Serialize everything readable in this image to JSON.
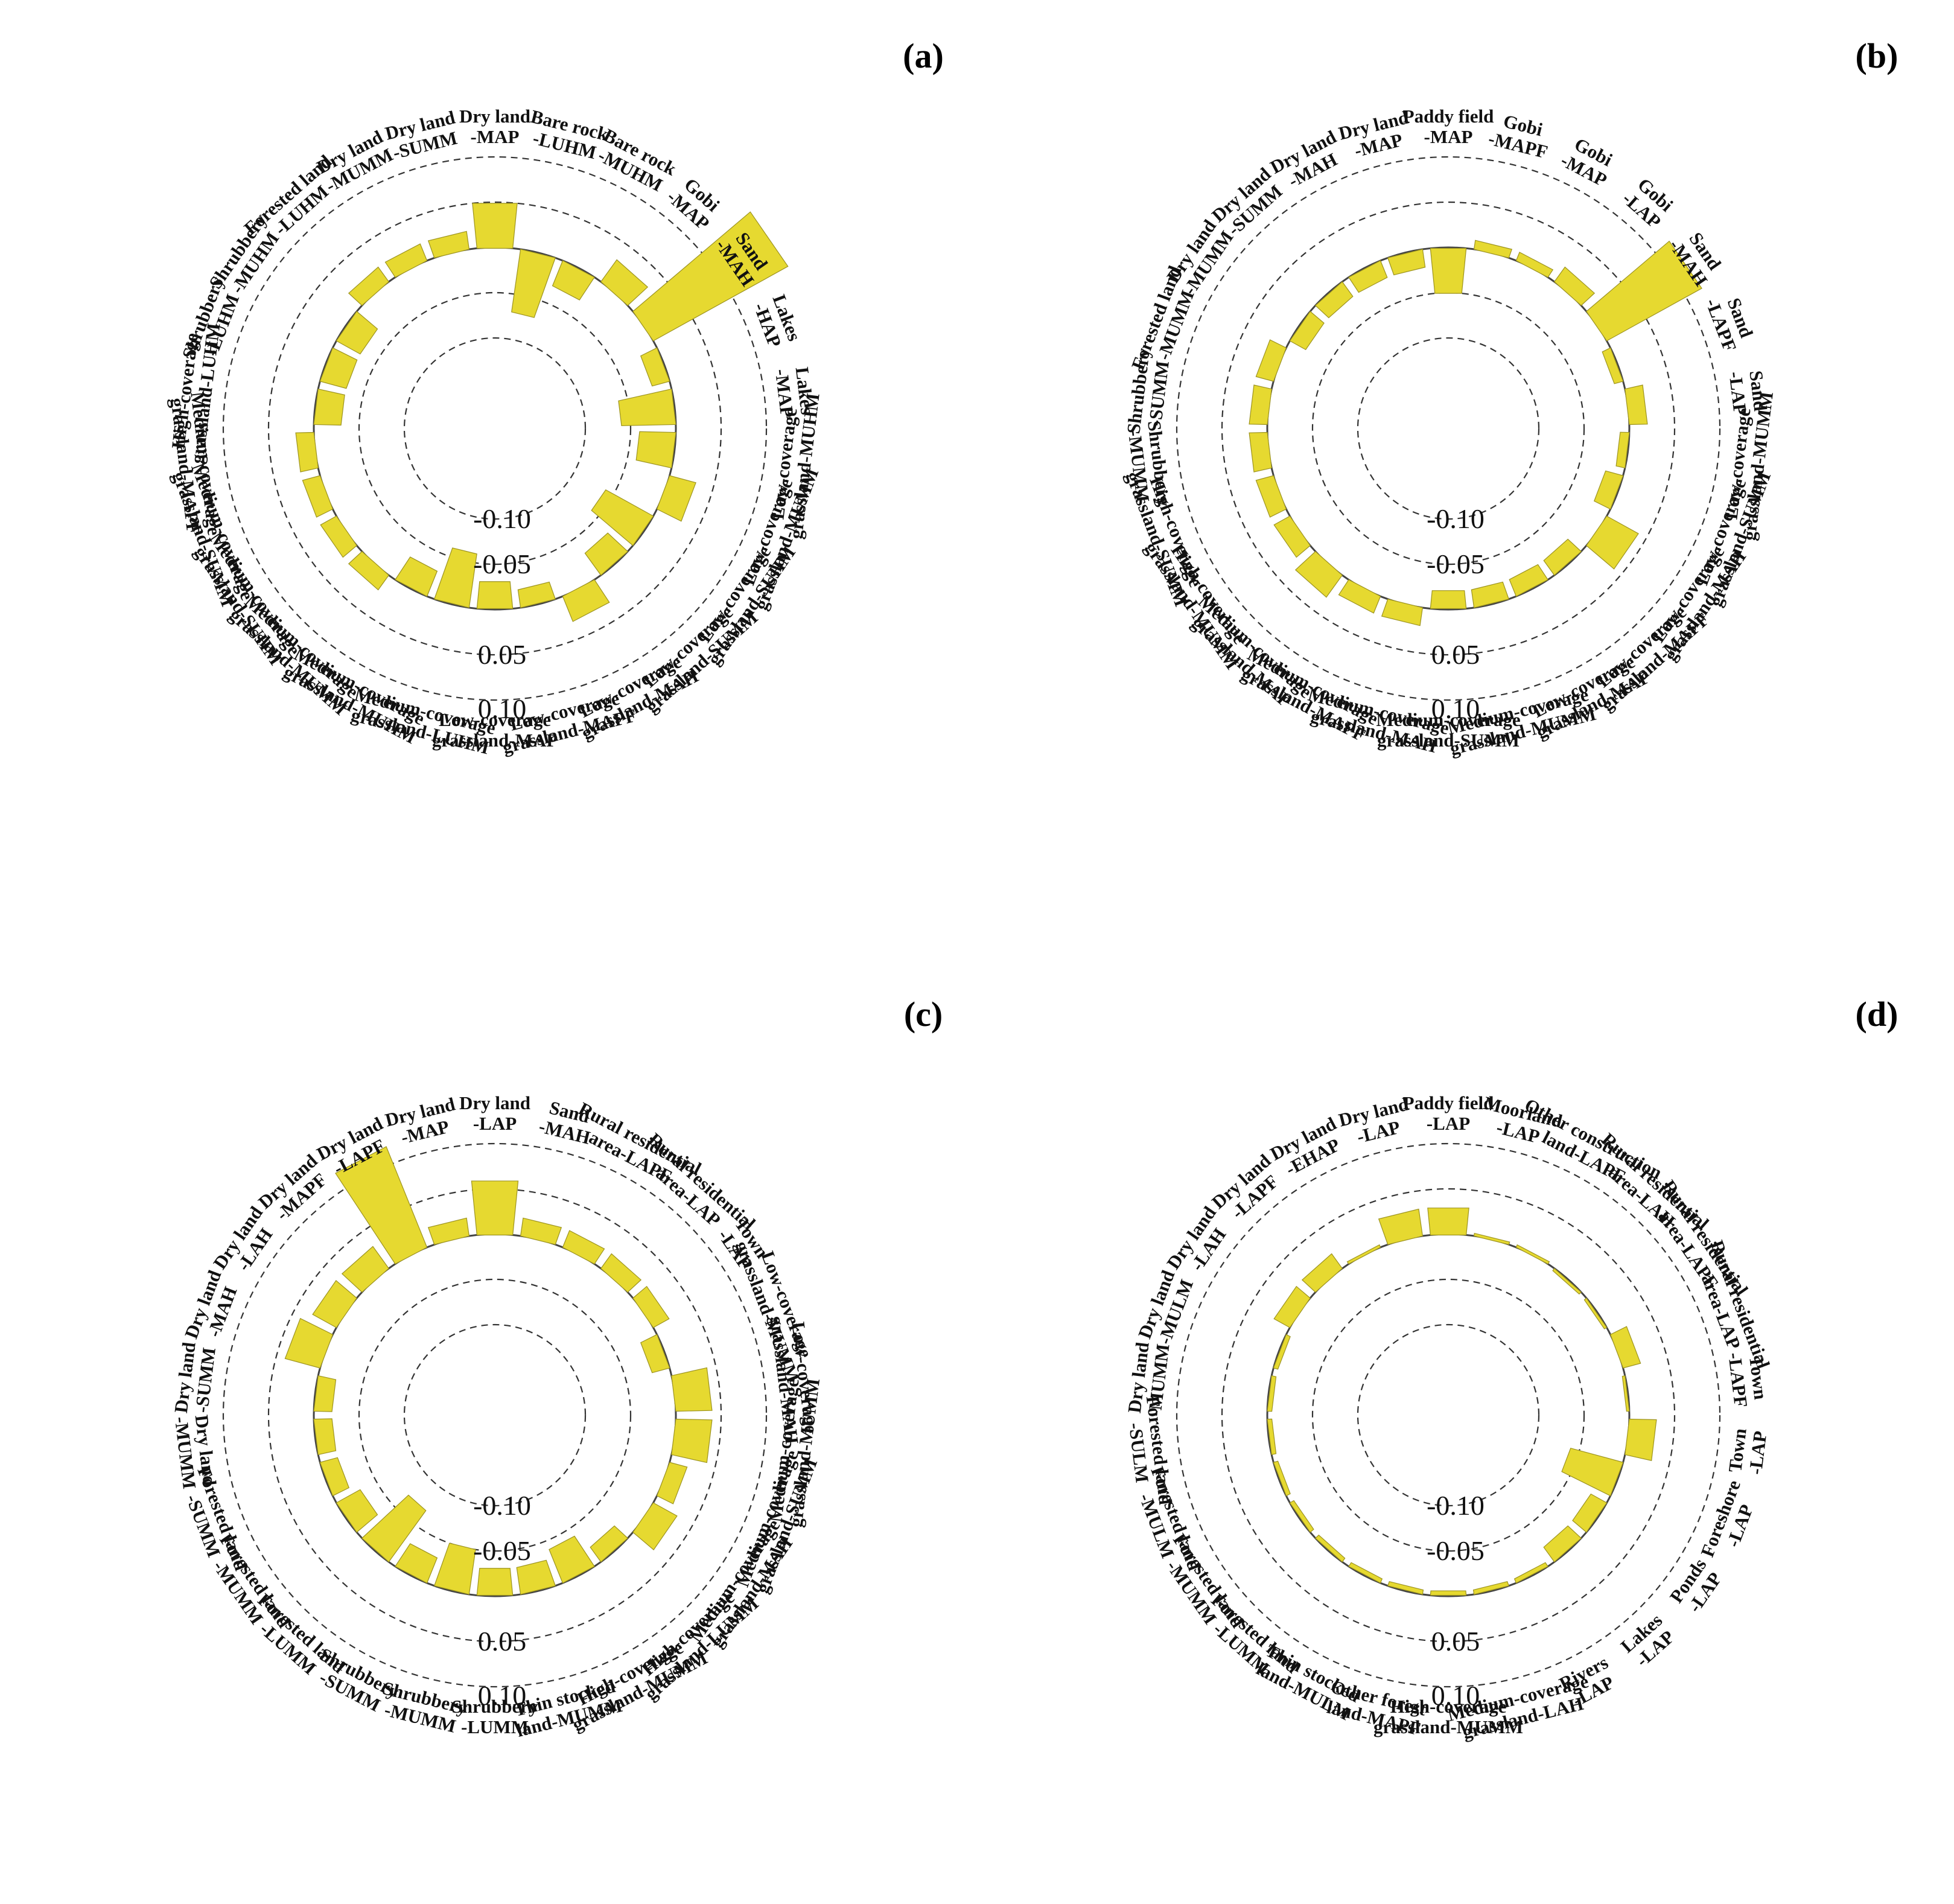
{
  "colors": {
    "bar_fill": "#e6d930",
    "bar_edge": "#9c9320",
    "grid": "#333333",
    "background": "#ffffff"
  },
  "chart_data": [
    {
      "type": "bar",
      "polar": true,
      "panel": "(a)",
      "radial_ticks": [
        "-0.10",
        "-0.05",
        "0.05",
        "0.10"
      ],
      "radial_tick_values": [
        -0.1,
        -0.05,
        0.05,
        0.1
      ],
      "ylim": [
        -0.1,
        0.18
      ],
      "grid": true,
      "categories": [
        "Dry land\n-MAP",
        "Bare rock\n-LUHM",
        "Bare rock\n-MUHM",
        "Gobi\n-MAP",
        "Sand\n-MAH",
        "Lakes\n-HAP",
        "Lakes\n-MAP",
        "Low-coverage\ngrassland-MUHM",
        "Low-coverage\ngrassland-MUMM",
        "Low-coverage\ngrassland-SUHM",
        "Low-coverage\ngrassland-SUMM",
        "Low-coverage\ngrassland-MAH",
        "Low-coverage\ngrassland-MAPF",
        "Low-coverage\ngrassland-MAP",
        "Medium-coverage\ngrassland-LUHM",
        "Medium-coverage\ngrassland-MUHM",
        "Medium-coverage\ngrassland-MUMM",
        "Medium-coverage\ngrassland-SUHM",
        "Medium-coverage\ngrassland-SUMM",
        "Medium-coverage\ngrassland-MAPF",
        "High-coverage\ngrassland-LUHM",
        "Shrubbery\n-LUHM",
        "Shrubbery\n-MUHM",
        "Forested land\n-LUHM",
        "Dry land\n-MUMM",
        "Dry land\n-SUMM"
      ],
      "values": [
        0.05,
        -0.07,
        -0.03,
        0.03,
        0.17,
        -0.02,
        -0.06,
        -0.04,
        0.03,
        -0.06,
        -0.03,
        0.03,
        -0.02,
        -0.03,
        -0.06,
        -0.03,
        0.02,
        0.02,
        0.02,
        0.02,
        -0.03,
        -0.03,
        -0.03,
        0.02,
        0.02,
        0.02
      ]
    },
    {
      "type": "bar",
      "polar": true,
      "panel": "(b)",
      "radial_ticks": [
        "-0.10",
        "-0.05",
        "0.05",
        "0.10"
      ],
      "radial_tick_values": [
        -0.1,
        -0.05,
        0.05,
        0.1
      ],
      "ylim": [
        -0.1,
        0.18
      ],
      "grid": true,
      "categories": [
        "Paddy field\n-MAP",
        "Gobi\n-MAPF",
        "Gobi\n-MAP",
        "Gobi\n-LAP",
        "Sand\n-MAH",
        "Sand\n-LAPF",
        "Sand\n-LAP",
        "Low-coverage\ngrassland-MUMM",
        "Low-coverage\ngrassland-SUMM",
        "Low-coverage\ngrassland-MAH",
        "Low-coverage\ngrassland-MAPF",
        "Low-coverage\ngrassland-MAP",
        "Medium-coverage\ngrassland-MUMM",
        "Medium-coverage\ngrassland-SUMM",
        "Medium-coverage\ngrassland-MAH",
        "Medium-coverage\ngrassland-MAPF",
        "Medium-coverage\ngrassland-MAP",
        "High-coverage\ngrassland-MUMM",
        "High-coverage\ngrassland-SUMM",
        "Shrubbery\n-MUMM",
        "Shrubbery\n-SUMM",
        "Forested land\n-MUMM",
        "Dry land\n-MUMM",
        "Dry land\n-SUMM",
        "Dry land\n-MAH",
        "Dry land\n-MAP"
      ],
      "values": [
        -0.05,
        0.01,
        0.01,
        0.02,
        0.12,
        -0.01,
        0.02,
        -0.01,
        -0.02,
        0.04,
        -0.02,
        -0.02,
        -0.02,
        -0.02,
        0.02,
        0.02,
        0.03,
        0.02,
        0.02,
        0.02,
        0.02,
        0.02,
        -0.02,
        -0.02,
        -0.02,
        -0.02
      ]
    },
    {
      "type": "bar",
      "polar": true,
      "panel": "(c)",
      "radial_ticks": [
        "-0.10",
        "-0.05",
        "0.05",
        "0.10"
      ],
      "radial_tick_values": [
        -0.1,
        -0.05,
        0.05,
        0.1
      ],
      "ylim": [
        -0.1,
        0.18
      ],
      "grid": true,
      "categories": [
        "Dry land\n-LAP",
        "Sand\n-MAH",
        "Rural residential\narea-LAPF",
        "Rural residential\narea-LAP",
        "Town\n-LAP",
        "Low-coverage\ngrassland-MUMM",
        "Low-coverage\ngrassland-MAH",
        "Medium-coverage\ngrassland-MUMM",
        "Medium-coverage\ngrassland-SUMM",
        "Medium-coverage\ngrassland-MAH",
        "High-coverage\ngrassland-LUMM",
        "High-coverage\ngrassland-MUMM",
        "Thin stocked\nland-MUMM",
        "Shrubbery\n-LUMM",
        "Shrubbery\n-MUMM",
        "Shrubbery\n-SUMM",
        "Forested land\n-LUMM",
        "Forested land\n-MUMM",
        "Forested land\n-SUMM",
        "Dry land\n-MUMM",
        "Dry land\n-SUMM",
        "Dry land\n-MAH",
        "Dry land\n-LAH",
        "Dry land\n-MAPF",
        "Dry land\n-LAPF",
        "Dry land\n-MAP"
      ],
      "values": [
        0.06,
        0.02,
        0.02,
        0.02,
        0.02,
        -0.02,
        0.04,
        0.04,
        0.02,
        0.03,
        -0.02,
        -0.04,
        -0.03,
        -0.03,
        -0.05,
        -0.03,
        -0.07,
        -0.03,
        -0.02,
        -0.02,
        -0.02,
        0.04,
        0.03,
        0.03,
        0.12,
        0.02
      ]
    },
    {
      "type": "bar",
      "polar": true,
      "panel": "(d)",
      "radial_ticks": [
        "-0.10",
        "-0.05",
        "0.05",
        "0.10"
      ],
      "radial_tick_values": [
        -0.1,
        -0.05,
        0.05,
        0.1
      ],
      "ylim": [
        -0.1,
        0.18
      ],
      "grid": true,
      "categories": [
        "Paddy field\n-LAP",
        "Moorland\n-LAP",
        "Other construction\nland-LAPF",
        "Rural residential\narea-LAH",
        "Rural residential\narea-LAPF",
        "Rural residential\narea-LAP",
        "Town\n-LAPF",
        "Town\n-LAP",
        "Foreshore\n-LAP",
        "Ponds\n-LAP",
        "Lakes\n-LAP",
        "Rivers\n-LAP",
        "Medium-coverage\ngrassland-LAH",
        "High-coverage\ngrassland-MUMM",
        "Other forest\nland-MAPF",
        "Thin stocked\nland-MULM",
        "Forested land\n-LUMM",
        "Forested land\n-MUMM",
        "Forested land\n-MULM",
        "Forested land\n-SULM",
        "Dry land\n-MUMM",
        "Dry land\n-MULM",
        "Dry land\n-LAH",
        "Dry land\n-LAPF",
        "Dry land\n-EHAP",
        "Dry land\n-LAP"
      ],
      "values": [
        0.03,
        0.003,
        0.003,
        -0.003,
        -0.003,
        0.02,
        -0.003,
        0.03,
        -0.06,
        -0.02,
        -0.02,
        -0.005,
        -0.005,
        -0.005,
        -0.005,
        -0.005,
        -0.005,
        -0.005,
        -0.005,
        -0.005,
        -0.005,
        -0.005,
        0.02,
        0.02,
        0.003,
        0.03
      ]
    }
  ]
}
